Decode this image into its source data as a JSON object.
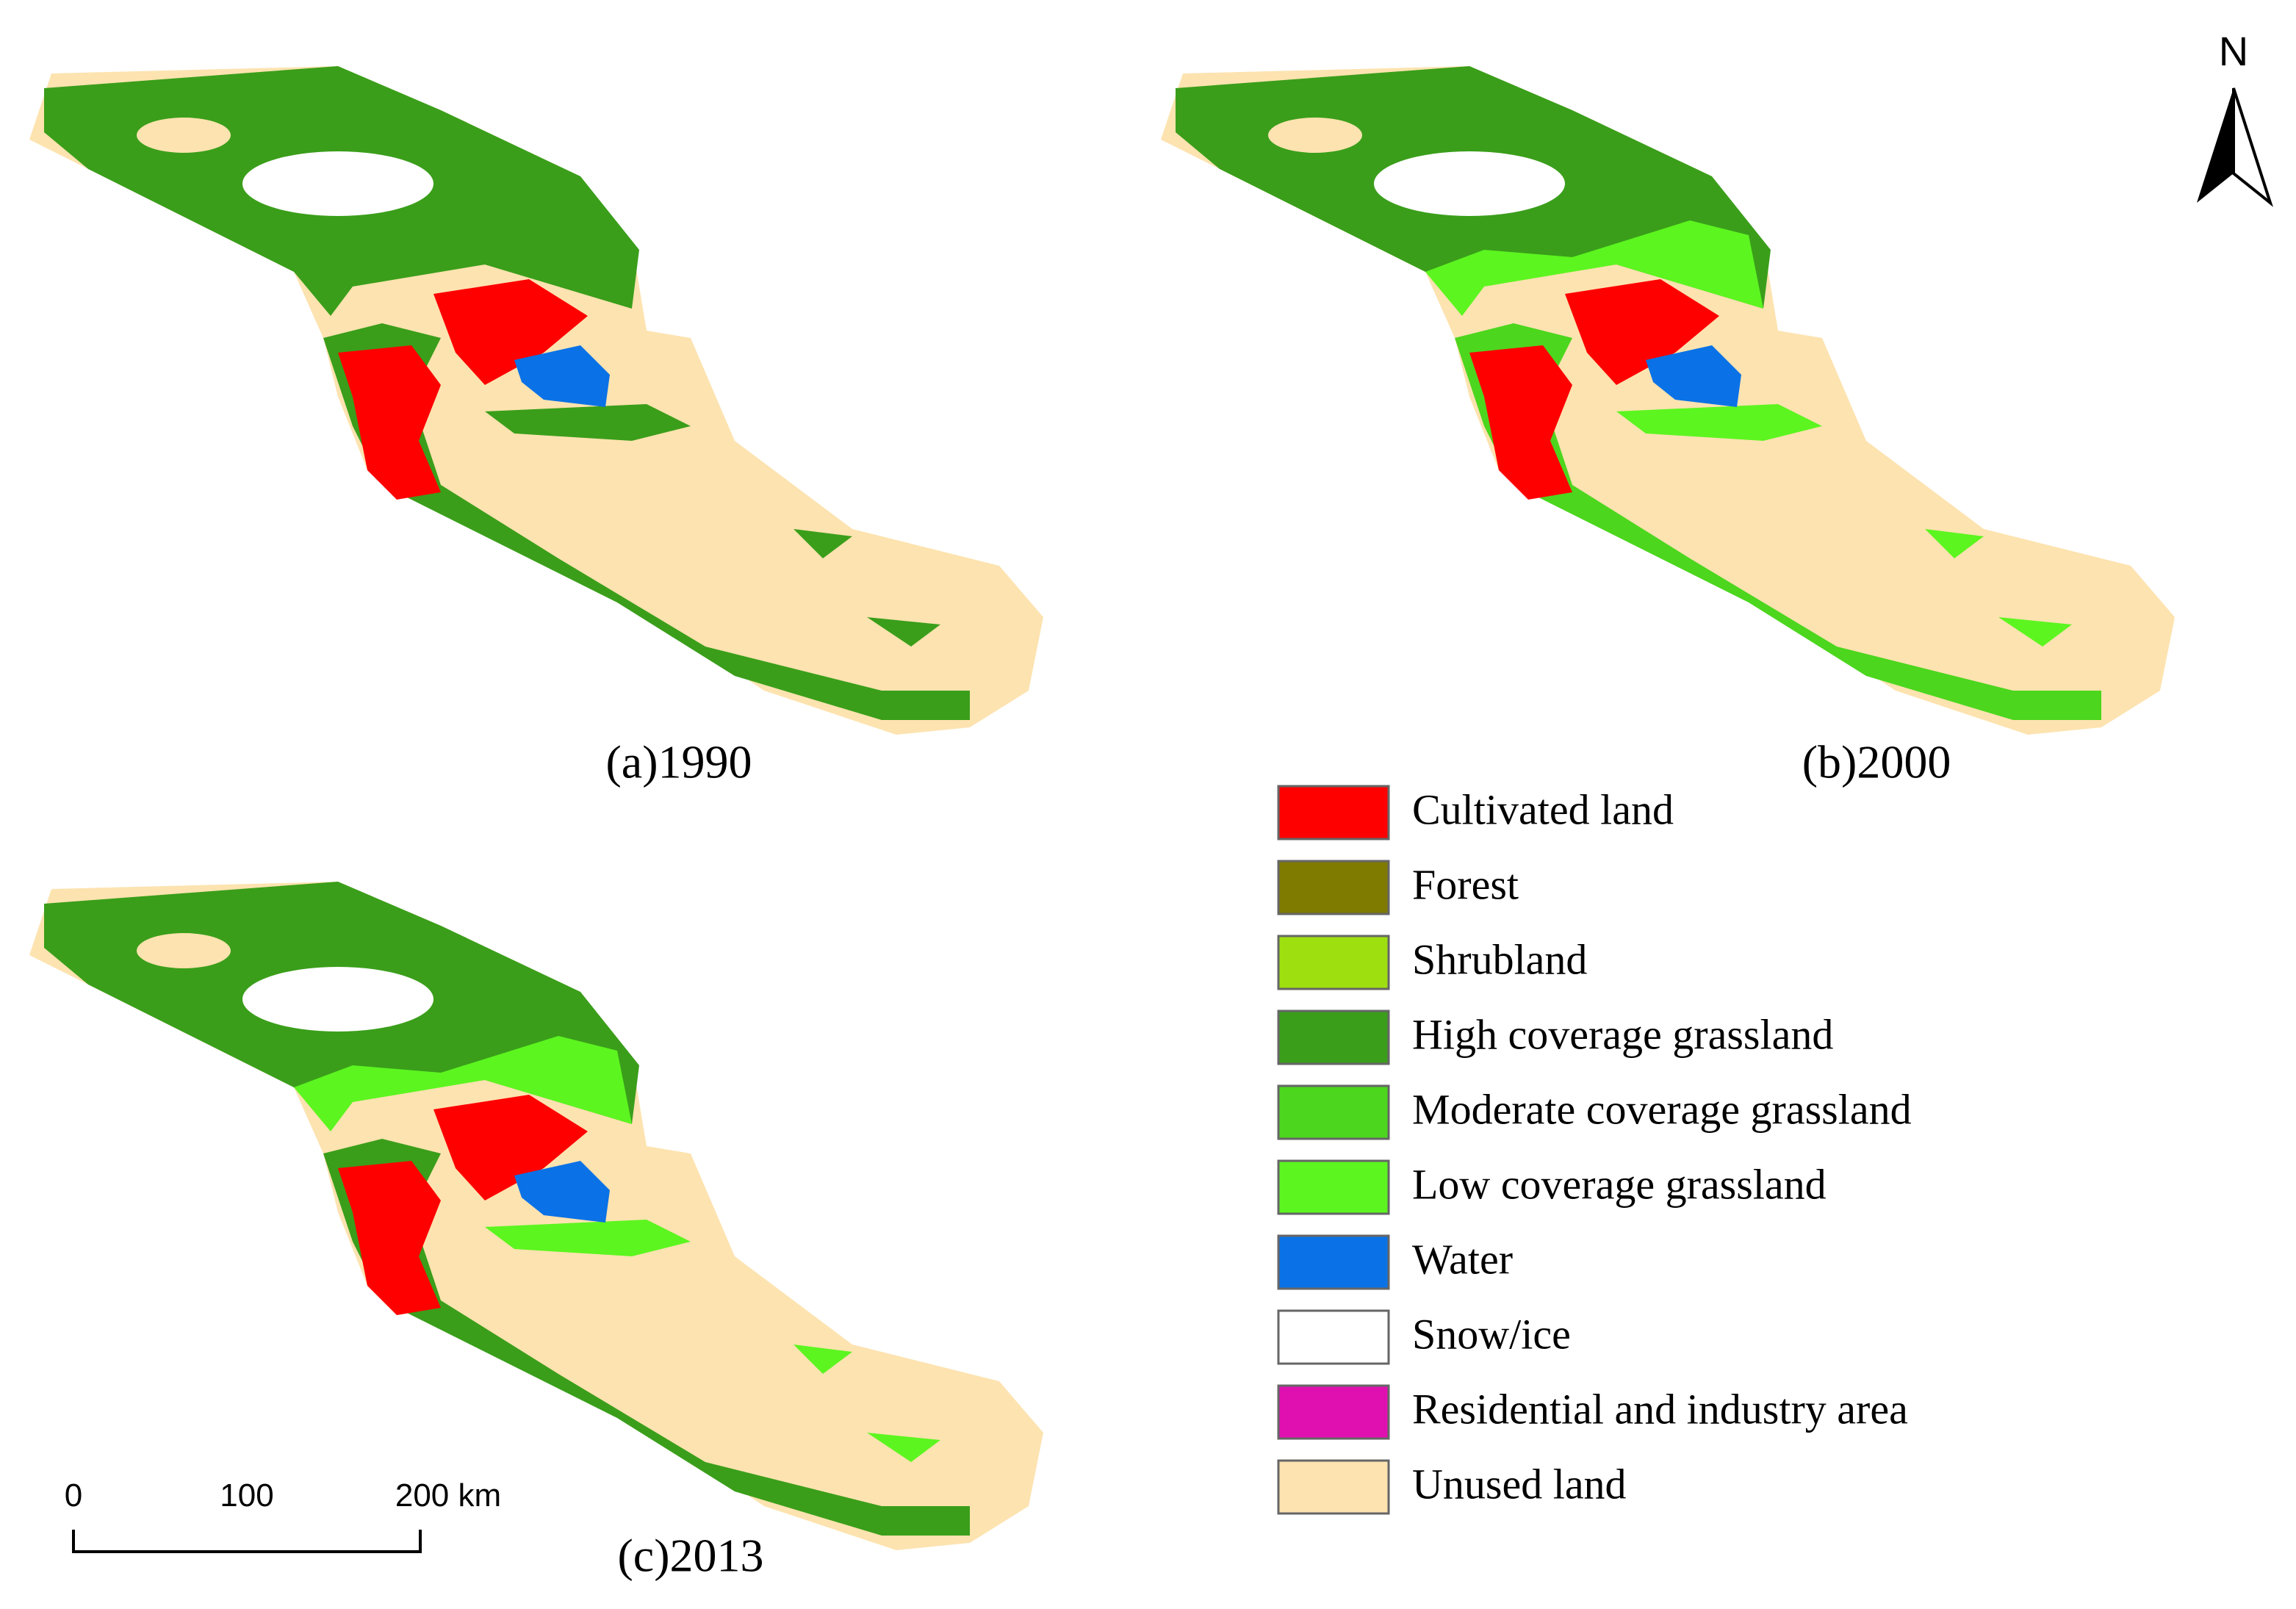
{
  "maps": [
    {
      "caption": "(a)1990"
    },
    {
      "caption": "(b)2000"
    },
    {
      "caption": "(c)2013"
    }
  ],
  "legend": [
    {
      "name": "Cultivated land",
      "color": "#ff0000"
    },
    {
      "name": "Forest",
      "color": "#7f7a00"
    },
    {
      "name": "Shrubland",
      "color": "#9ee00f"
    },
    {
      "name": "High coverage grassland",
      "color": "#3a9e1a"
    },
    {
      "name": "Moderate coverage grassland",
      "color": "#4cd61e"
    },
    {
      "name": "Low coverage grassland",
      "color": "#5cf520"
    },
    {
      "name": "Water",
      "color": "#0a72e6"
    },
    {
      "name": "Snow/ice",
      "color": "#ffffff"
    },
    {
      "name": "Residential and industry area",
      "color": "#e010b0"
    },
    {
      "name": "Unused land",
      "color": "#fde3b0"
    }
  ],
  "scale_bar": {
    "labels": [
      "0",
      "100",
      "200 km"
    ]
  },
  "north_arrow": {
    "label": "N"
  }
}
